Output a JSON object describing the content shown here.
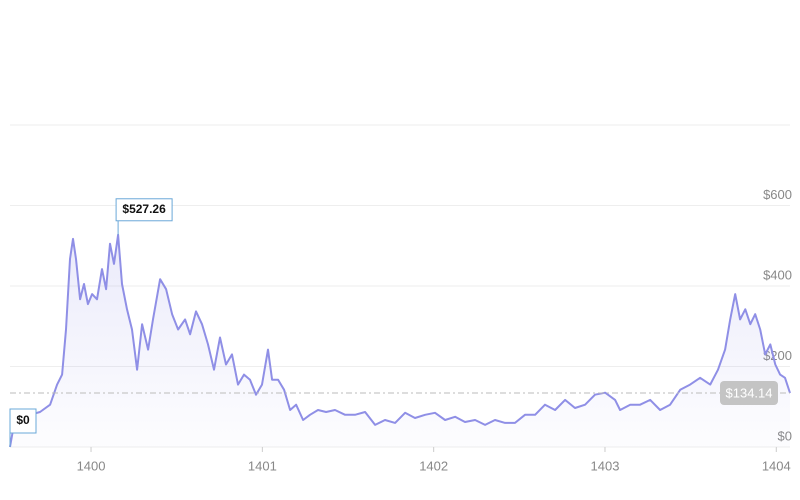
{
  "chart_data": {
    "type": "line",
    "color": "#8f8fe6",
    "grid": true,
    "x": [
      1399.527,
      1399.55,
      1399.586,
      1399.644,
      1399.702,
      1399.761,
      1399.802,
      1399.831,
      1399.854,
      1399.877,
      1399.895,
      1399.912,
      1399.936,
      1399.959,
      1399.982,
      1400.006,
      1400.035,
      1400.064,
      1400.088,
      1400.111,
      1400.134,
      1400.158,
      1400.181,
      1400.21,
      1400.239,
      1400.269,
      1400.298,
      1400.333,
      1400.362,
      1400.403,
      1400.438,
      1400.473,
      1400.508,
      1400.549,
      1400.578,
      1400.613,
      1400.648,
      1400.683,
      1400.718,
      1400.753,
      1400.788,
      1400.823,
      1400.858,
      1400.893,
      1400.928,
      1400.963,
      1400.998,
      1401.033,
      1401.057,
      1401.092,
      1401.127,
      1401.162,
      1401.197,
      1401.238,
      1401.278,
      1401.325,
      1401.372,
      1401.424,
      1401.483,
      1401.541,
      1401.6,
      1401.658,
      1401.716,
      1401.775,
      1401.833,
      1401.891,
      1401.95,
      1402.008,
      1402.067,
      1402.125,
      1402.183,
      1402.242,
      1402.3,
      1402.358,
      1402.417,
      1402.475,
      1402.533,
      1402.592,
      1402.65,
      1402.709,
      1402.767,
      1402.825,
      1402.884,
      1402.942,
      1403.001,
      1403.059,
      1403.088,
      1403.147,
      1403.205,
      1403.264,
      1403.322,
      1403.38,
      1403.439,
      1403.497,
      1403.555,
      1403.614,
      1403.66,
      1403.701,
      1403.731,
      1403.76,
      1403.789,
      1403.819,
      1403.848,
      1403.877,
      1403.906,
      1403.935,
      1403.965,
      1403.994,
      1404.022,
      1404.051,
      1404.08
    ],
    "values": [
      0,
      55,
      67,
      80,
      87,
      105,
      155,
      180,
      292,
      467,
      517,
      467,
      367,
      405,
      355,
      380,
      367,
      442,
      392,
      505,
      455,
      527.26,
      405,
      342,
      292,
      192,
      305,
      242,
      317,
      417,
      392,
      330,
      292,
      317,
      280,
      337,
      305,
      255,
      192,
      272,
      205,
      230,
      155,
      180,
      167,
      130,
      155,
      242,
      167,
      167,
      142,
      92,
      105,
      67,
      80,
      92,
      87,
      92,
      80,
      80,
      87,
      55,
      67,
      60,
      85,
      72,
      80,
      85,
      67,
      75,
      62,
      67,
      55,
      67,
      60,
      60,
      80,
      80,
      105,
      92,
      117,
      97,
      105,
      130,
      135,
      117,
      92,
      105,
      105,
      117,
      92,
      105,
      142,
      155,
      172,
      155,
      192,
      242,
      317,
      380,
      317,
      342,
      305,
      330,
      292,
      230,
      255,
      205,
      180,
      172,
      134.14
    ],
    "xlim": [
      1399.527,
      1404.08
    ],
    "xticks": [
      1400,
      1401,
      1402,
      1403,
      1404
    ],
    "ylim": [
      0,
      800
    ],
    "yticks": [
      {
        "value": 0,
        "label": "$0"
      },
      {
        "value": 200,
        "label": "$200"
      },
      {
        "value": 400,
        "label": "$400"
      },
      {
        "value": 600,
        "label": "$600"
      }
    ],
    "annotations": [
      {
        "x": 1400.158,
        "value": 527.26,
        "label": "$527.26"
      },
      {
        "x": 1399.527,
        "value": 0,
        "label": "$0"
      },
      {
        "x": 1404.08,
        "value": 134.14,
        "label": "$134.14"
      }
    ]
  }
}
